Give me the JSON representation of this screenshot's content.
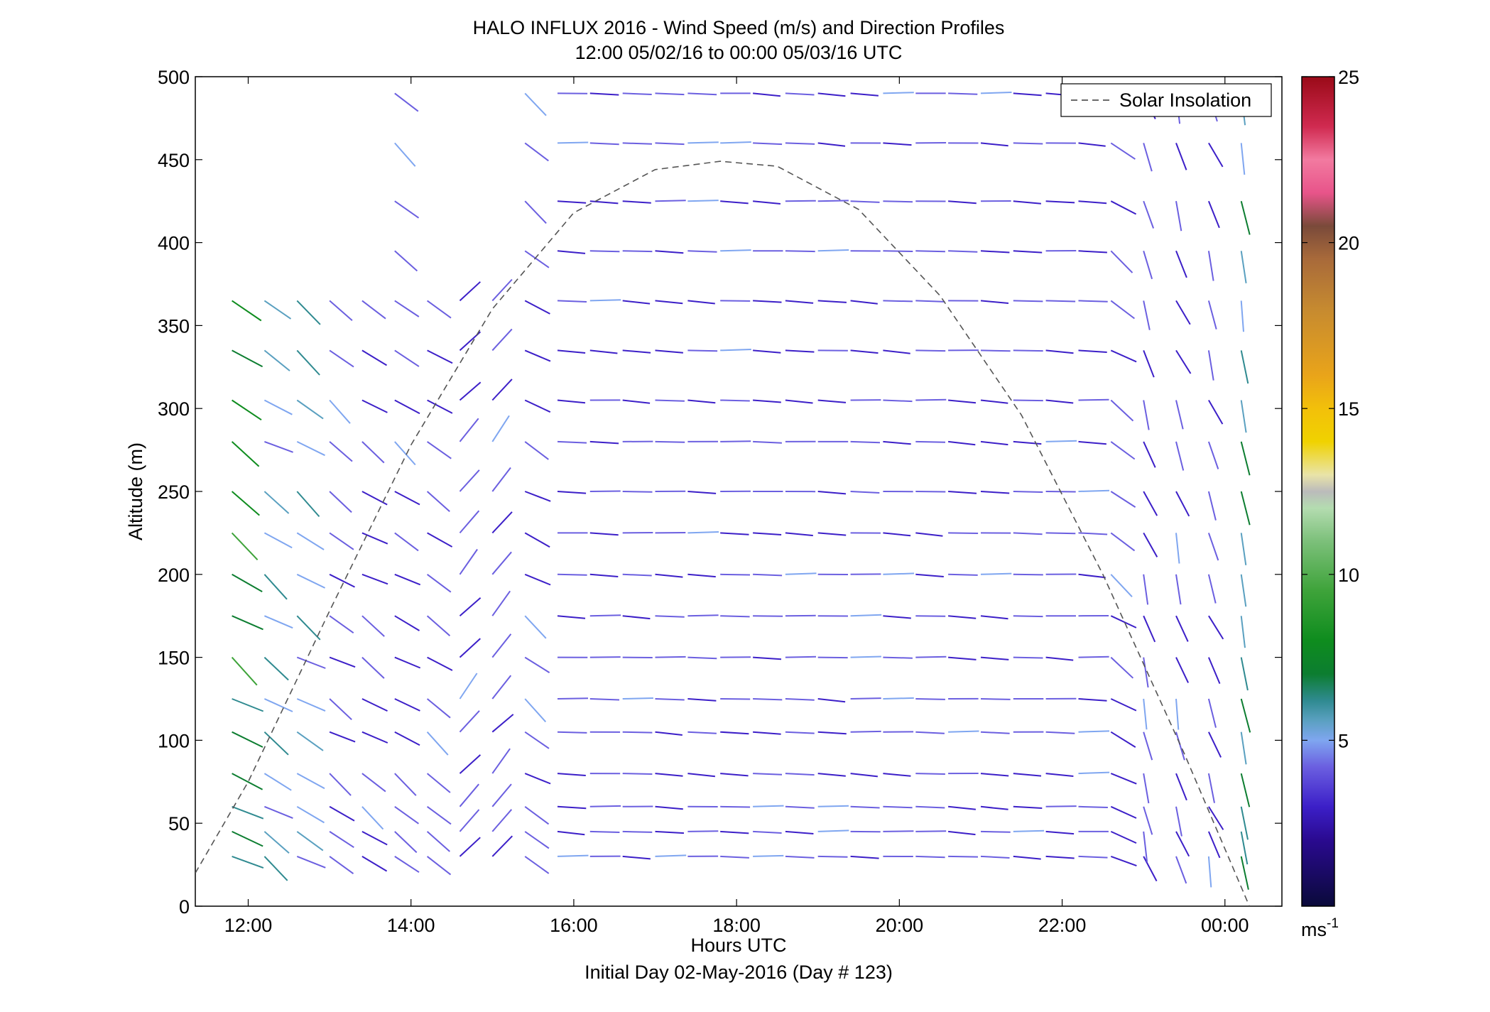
{
  "chart_data": {
    "type": "quiver",
    "title": "HALO INFLUX 2016 - Wind Speed (m/s) and Direction Profiles",
    "subtitle": "12:00 05/02/16 to 00:00 05/03/16  UTC",
    "xlabel": "Hours UTC",
    "ylabel": "Altitude (m)",
    "footer": "Initial Day 02-May-2016 (Day # 123)",
    "xlim": [
      11.35,
      24.7
    ],
    "ylim": [
      0,
      500
    ],
    "x_ticks": [
      {
        "value": 12,
        "label": "12:00"
      },
      {
        "value": 14,
        "label": "14:00"
      },
      {
        "value": 16,
        "label": "16:00"
      },
      {
        "value": 18,
        "label": "18:00"
      },
      {
        "value": 20,
        "label": "20:00"
      },
      {
        "value": 22,
        "label": "22:00"
      },
      {
        "value": 24,
        "label": "00:00"
      }
    ],
    "y_ticks": [
      {
        "value": 0,
        "label": "0"
      },
      {
        "value": 50,
        "label": "50"
      },
      {
        "value": 100,
        "label": "100"
      },
      {
        "value": 150,
        "label": "150"
      },
      {
        "value": 200,
        "label": "200"
      },
      {
        "value": 250,
        "label": "250"
      },
      {
        "value": 300,
        "label": "300"
      },
      {
        "value": 350,
        "label": "350"
      },
      {
        "value": 400,
        "label": "400"
      },
      {
        "value": 450,
        "label": "450"
      },
      {
        "value": 500,
        "label": "500"
      }
    ],
    "legend": {
      "label": "Solar Insolation",
      "placement": "top-right"
    },
    "solar_insolation": {
      "style": "dashed",
      "color": "#555555",
      "points": [
        [
          11.35,
          20
        ],
        [
          12,
          75
        ],
        [
          13,
          178
        ],
        [
          14,
          278
        ],
        [
          15,
          360
        ],
        [
          16,
          418
        ],
        [
          17,
          444
        ],
        [
          17.8,
          449
        ],
        [
          18.5,
          446
        ],
        [
          19.5,
          420
        ],
        [
          20.5,
          368
        ],
        [
          21.5,
          296
        ],
        [
          22.5,
          200
        ],
        [
          23.5,
          92
        ],
        [
          24.3,
          0
        ]
      ]
    },
    "colorbar": {
      "min": 0,
      "max": 25,
      "units": "ms-1",
      "ticks": [
        {
          "value": 5,
          "label": "5"
        },
        {
          "value": 10,
          "label": "10"
        },
        {
          "value": 15,
          "label": "15"
        },
        {
          "value": 20,
          "label": "20"
        },
        {
          "value": 25,
          "label": "25"
        }
      ],
      "stops": [
        [
          0,
          "#0a0a3a"
        ],
        [
          2,
          "#2a0a90"
        ],
        [
          3,
          "#3c1fc8"
        ],
        [
          4.2,
          "#6b5fe0"
        ],
        [
          5,
          "#7fa6f0"
        ],
        [
          5.6,
          "#5aa0c0"
        ],
        [
          6.2,
          "#2f8a90"
        ],
        [
          7,
          "#0c7d30"
        ],
        [
          8,
          "#0e8c1e"
        ],
        [
          9.5,
          "#3ea33a"
        ],
        [
          11,
          "#7cc07a"
        ],
        [
          12,
          "#b4dcb0"
        ],
        [
          12.5,
          "#bbbbbb"
        ],
        [
          13,
          "#e9e4a8"
        ],
        [
          14,
          "#f0d200"
        ],
        [
          15,
          "#f2c00a"
        ],
        [
          16,
          "#e9a41a"
        ],
        [
          18,
          "#c68a30"
        ],
        [
          19.5,
          "#a86a3a"
        ],
        [
          20.5,
          "#7a4a3a"
        ],
        [
          21.5,
          "#e8548a"
        ],
        [
          22.5,
          "#f27aa0"
        ],
        [
          23.5,
          "#d02a50"
        ],
        [
          25,
          "#9a0a18"
        ]
      ]
    },
    "series": [
      {
        "name": "Wind vectors",
        "x_start": 11.8,
        "x_step": 0.4,
        "columns": 32,
        "altitudes": [
          30,
          45,
          60,
          80,
          105,
          125,
          150,
          175,
          200,
          225,
          250,
          280,
          305,
          335,
          365,
          395,
          425,
          460,
          490
        ],
        "note_colors": "speed encoded by colorbar"
      }
    ]
  }
}
